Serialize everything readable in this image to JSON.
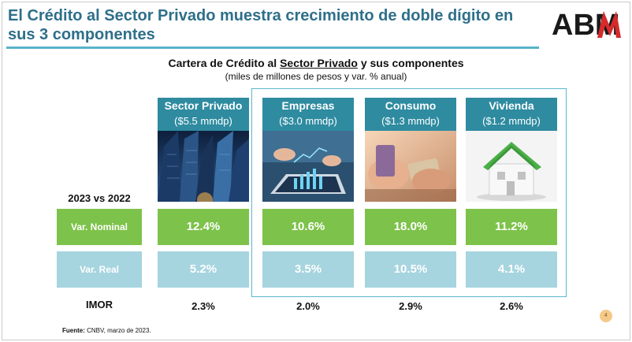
{
  "header": {
    "title": "El Crédito al Sector Privado muestra crecimiento de doble dígito en sus 3 componentes",
    "logo_text": "ABM"
  },
  "chart": {
    "title_prefix": "Cartera de Crédito al",
    "title_underlined": "Sector Privado",
    "title_suffix": "y sus componentes",
    "subtitle": "(miles de millones de pesos y var. % anual)"
  },
  "columns": [
    {
      "name": "Sector Privado",
      "amount": "($5.5 mmdp)",
      "photo": "skyscrapers-photo",
      "nominal": "12.4%",
      "real": "5.2%",
      "imor": "2.3%"
    },
    {
      "name": "Empresas",
      "amount": "($3.0 mmdp)",
      "photo": "tablet-chart-photo",
      "nominal": "10.6%",
      "real": "3.5%",
      "imor": "2.0%"
    },
    {
      "name": "Consumo",
      "amount": "($1.3 mmdp)",
      "photo": "credit-card-photo",
      "nominal": "18.0%",
      "real": "10.5%",
      "imor": "2.9%"
    },
    {
      "name": "Vivienda",
      "amount": "($1.2 mmdp)",
      "photo": "house-model-photo",
      "nominal": "11.2%",
      "real": "4.1%",
      "imor": "2.6%"
    }
  ],
  "rows": {
    "comparison_label": "2023 vs 2022",
    "nominal_label": "Var. Nominal",
    "real_label": "Var. Real",
    "imor_label": "IMOR"
  },
  "footer": {
    "source_label": "Fuente:",
    "source_text": "CNBV, marzo de 2023.",
    "page_number": "4"
  },
  "colors": {
    "title": "#2e6f8a",
    "header_fill": "#2e8ba0",
    "nominal_fill": "#7dc24a",
    "real_fill": "#a6d4df",
    "accent_rule": "#59b3c9"
  }
}
